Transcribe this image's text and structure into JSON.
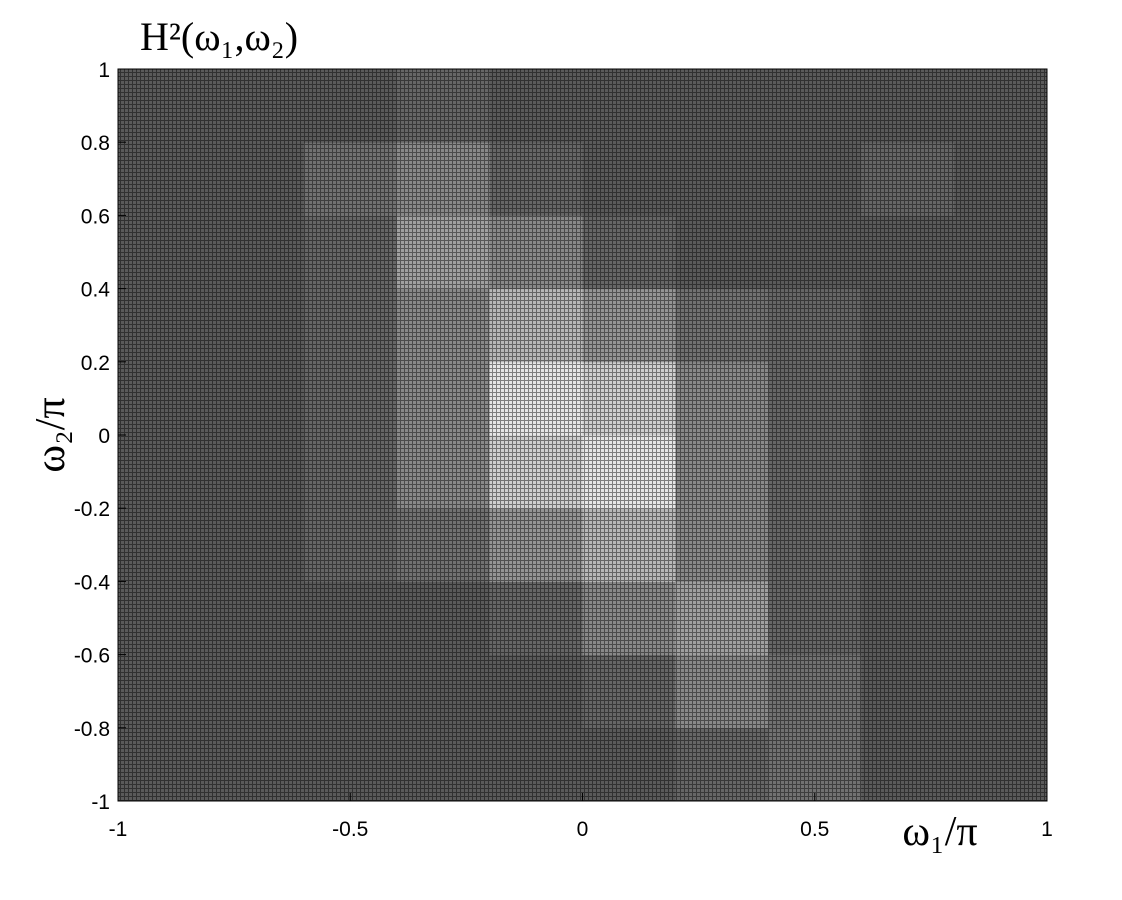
{
  "chart_data": {
    "type": "heatmap",
    "title": "H²(ω₁,ω₂)",
    "x_label": "ω₁/π",
    "y_label": "ω₂/π",
    "x": [
      -0.9,
      -0.7,
      -0.5,
      -0.3,
      -0.1,
      0.1,
      0.3,
      0.5,
      0.7,
      0.9
    ],
    "y": [
      -0.9,
      -0.7,
      -0.5,
      -0.3,
      -0.1,
      0.1,
      0.3,
      0.5,
      0.7,
      0.9
    ],
    "z": [
      [
        0.1,
        0.1,
        0.1,
        0.1,
        0.1,
        0.1,
        0.15,
        0.2,
        0.1,
        0.1
      ],
      [
        0.1,
        0.1,
        0.1,
        0.1,
        0.1,
        0.15,
        0.3,
        0.2,
        0.1,
        0.1
      ],
      [
        0.1,
        0.1,
        0.1,
        0.1,
        0.15,
        0.3,
        0.4,
        0.15,
        0.1,
        0.1
      ],
      [
        0.1,
        0.1,
        0.15,
        0.2,
        0.35,
        0.5,
        0.3,
        0.15,
        0.1,
        0.1
      ],
      [
        0.1,
        0.1,
        0.15,
        0.3,
        0.6,
        0.7,
        0.3,
        0.15,
        0.1,
        0.1
      ],
      [
        0.1,
        0.1,
        0.15,
        0.3,
        0.7,
        0.6,
        0.3,
        0.15,
        0.1,
        0.1
      ],
      [
        0.1,
        0.1,
        0.15,
        0.3,
        0.5,
        0.35,
        0.2,
        0.15,
        0.1,
        0.1
      ],
      [
        0.1,
        0.1,
        0.15,
        0.4,
        0.3,
        0.15,
        0.1,
        0.1,
        0.1,
        0.1
      ],
      [
        0.1,
        0.1,
        0.2,
        0.3,
        0.15,
        0.1,
        0.1,
        0.1,
        0.15,
        0.1
      ],
      [
        0.1,
        0.1,
        0.1,
        0.15,
        0.1,
        0.1,
        0.1,
        0.1,
        0.1,
        0.1
      ]
    ],
    "colormap": [
      "#5a5a5a",
      "#ffffff"
    ],
    "xlim": [
      -1,
      1
    ],
    "ylim": [
      -1,
      1
    ],
    "xticks": [
      -1,
      -0.5,
      0,
      0.5,
      1
    ],
    "yticks": [
      -1,
      -0.8,
      -0.6,
      -0.4,
      -0.2,
      0,
      0.2,
      0.4,
      0.6,
      0.8,
      1
    ]
  }
}
